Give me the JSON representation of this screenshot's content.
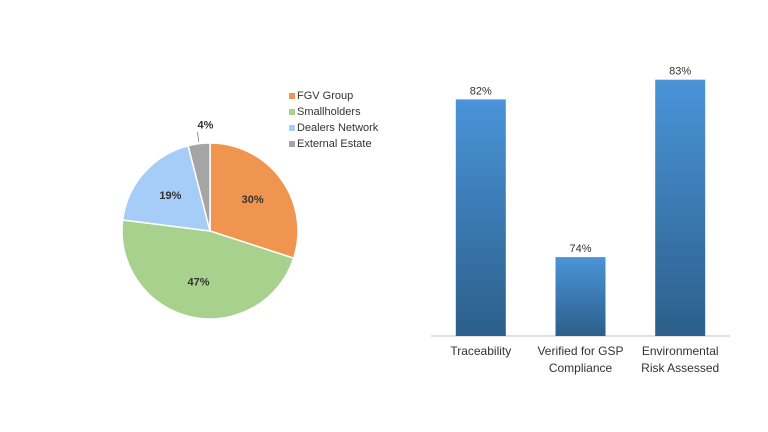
{
  "chart_data": [
    {
      "type": "pie",
      "title": "",
      "slices": [
        {
          "label": "FGV Group",
          "value": 30,
          "display": "30%",
          "color": "#F0954F"
        },
        {
          "label": "Smallholders",
          "value": 47,
          "display": "47%",
          "color": "#A9D18E"
        },
        {
          "label": "Dealers Network",
          "value": 19,
          "display": "19%",
          "color": "#A6CDF7"
        },
        {
          "label": "External Estate",
          "value": 4,
          "display": "4%",
          "color": "#A5A5A5"
        }
      ],
      "legend": "right"
    },
    {
      "type": "bar",
      "title": "",
      "categories": [
        [
          "Traceability"
        ],
        [
          "Verified for GSP",
          "Compliance"
        ],
        [
          "Environmental",
          "Risk Assessed"
        ]
      ],
      "values": [
        82,
        74,
        83
      ],
      "value_labels": [
        "82%",
        "74%",
        "83%"
      ],
      "ylim": [
        70,
        84
      ],
      "bar_color_top": "#4A94D9",
      "bar_color_bottom": "#2C5F8A",
      "grid": false
    }
  ]
}
